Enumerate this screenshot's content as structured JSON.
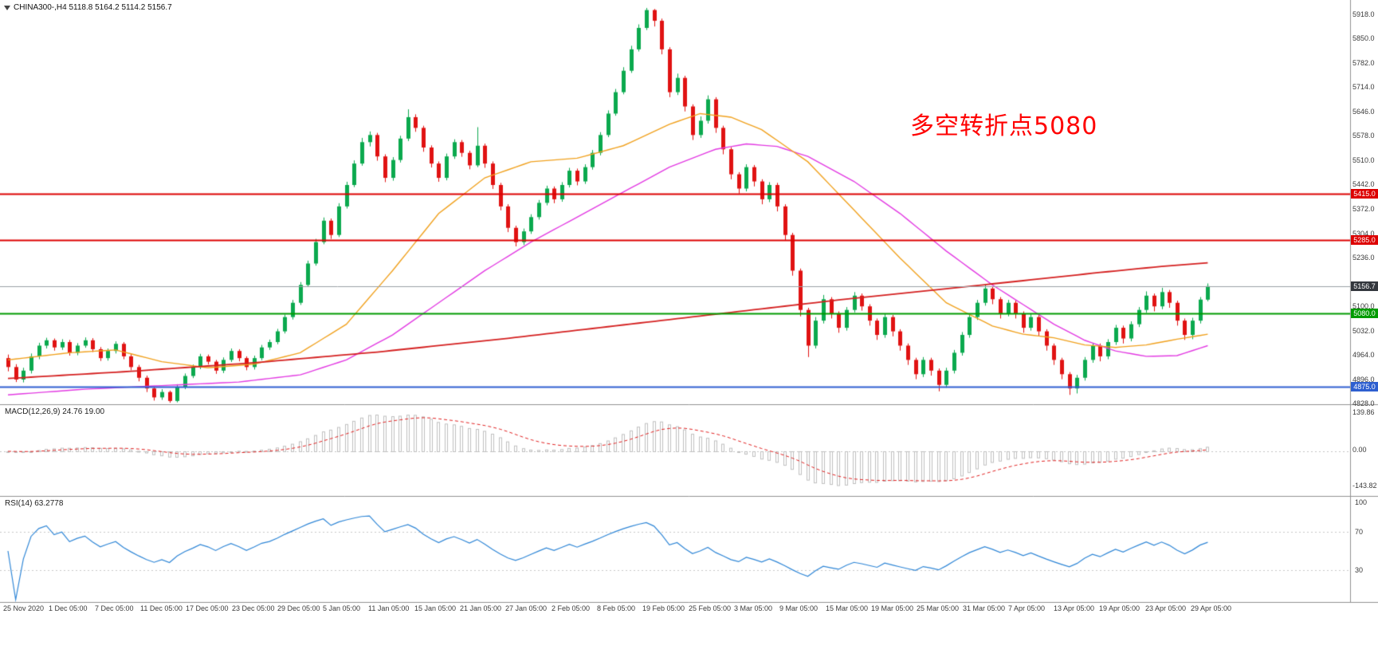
{
  "header": {
    "symbol_info": "CHINA300-,H4 5118.8 5164.2 5114.2 5156.7"
  },
  "annotation": {
    "text": "多空转折点5080",
    "color": "#ff0000"
  },
  "colors": {
    "background": "#ffffff",
    "candle_up": "#0ba94e",
    "candle_down": "#e01212",
    "ma_fast": "#f0a11e",
    "ma_medium": "#e23ae2",
    "ma_slow": "#d42020",
    "macd_histogram": "#bfbfbf",
    "macd_signal": "#e02020",
    "rsi_line": "#2f86d6",
    "axis_text": "#3a3a3a",
    "divider": "#909090"
  },
  "chart_data": {
    "type": "candlestick",
    "symbol": "CHINA300-",
    "timeframe": "H4",
    "title": "CHINA300-,H4",
    "current_bar": {
      "open": 5118.8,
      "high": 5164.2,
      "low": 5114.2,
      "close": 5156.7
    },
    "ylim": [
      4828,
      5918
    ],
    "y_axis_labels": [
      "5918.0",
      "5850.0",
      "5782.0",
      "5714.0",
      "5646.0",
      "5578.0",
      "5510.0",
      "5442.0",
      "5372.0",
      "5304.0",
      "5236.0",
      "5100.0",
      "5032.0",
      "4964.0",
      "4896.0",
      "4828.0"
    ],
    "x_axis_labels": [
      "25 Nov 2020",
      "1 Dec 05:00",
      "7 Dec 05:00",
      "11 Dec 05:00",
      "17 Dec 05:00",
      "23 Dec 05:00",
      "29 Dec 05:00",
      "5 Jan 05:00",
      "11 Jan 05:00",
      "15 Jan 05:00",
      "21 Jan 05:00",
      "27 Jan 05:00",
      "2 Feb 05:00",
      "8 Feb 05:00",
      "19 Feb 05:00",
      "25 Feb 05:00",
      "3 Mar 05:00",
      "9 Mar 05:00",
      "15 Mar 05:00",
      "19 Mar 05:00",
      "25 Mar 05:00",
      "31 Mar 05:00",
      "7 Apr 05:00",
      "13 Apr 05:00",
      "19 Apr 05:00",
      "23 Apr 05:00",
      "29 Apr 05:00"
    ],
    "candles": [
      [
        4955,
        4965,
        4918,
        4930
      ],
      [
        4930,
        4938,
        4888,
        4895
      ],
      [
        4895,
        4928,
        4887,
        4920
      ],
      [
        4920,
        4968,
        4912,
        4960
      ],
      [
        4960,
        4998,
        4952,
        4990
      ],
      [
        4990,
        5012,
        4982,
        5005
      ],
      [
        5005,
        5010,
        4976,
        4985
      ],
      [
        4985,
        5008,
        4978,
        5000
      ],
      [
        5000,
        5006,
        4962,
        4970
      ],
      [
        4970,
        4997,
        4963,
        4990
      ],
      [
        4990,
        5013,
        4984,
        5005
      ],
      [
        5005,
        5011,
        4972,
        4980
      ],
      [
        4980,
        4986,
        4947,
        4955
      ],
      [
        4955,
        4982,
        4948,
        4975
      ],
      [
        4975,
        5002,
        4968,
        4995
      ],
      [
        4995,
        5000,
        4952,
        4960
      ],
      [
        4960,
        4966,
        4921,
        4930
      ],
      [
        4930,
        4936,
        4890,
        4900
      ],
      [
        4900,
        4906,
        4860,
        4870
      ],
      [
        4870,
        4876,
        4836,
        4845
      ],
      [
        4845,
        4868,
        4838,
        4860
      ],
      [
        4860,
        4864,
        4830,
        4835
      ],
      [
        4835,
        4882,
        4831,
        4875
      ],
      [
        4875,
        4912,
        4868,
        4905
      ],
      [
        4905,
        4937,
        4899,
        4930
      ],
      [
        4930,
        4967,
        4924,
        4960
      ],
      [
        4960,
        4965,
        4937,
        4945
      ],
      [
        4945,
        4950,
        4911,
        4920
      ],
      [
        4920,
        4957,
        4913,
        4950
      ],
      [
        4950,
        4982,
        4944,
        4975
      ],
      [
        4975,
        4980,
        4946,
        4955
      ],
      [
        4955,
        4960,
        4921,
        4930
      ],
      [
        4930,
        4962,
        4923,
        4955
      ],
      [
        4955,
        4992,
        4949,
        4985
      ],
      [
        4985,
        5007,
        4978,
        5000
      ],
      [
        5000,
        5037,
        4994,
        5030
      ],
      [
        5030,
        5077,
        5024,
        5070
      ],
      [
        5070,
        5118,
        5063,
        5110
      ],
      [
        5110,
        5168,
        5104,
        5160
      ],
      [
        5160,
        5228,
        5154,
        5220
      ],
      [
        5220,
        5289,
        5214,
        5280
      ],
      [
        5280,
        5349,
        5274,
        5340
      ],
      [
        5340,
        5346,
        5289,
        5300
      ],
      [
        5300,
        5389,
        5294,
        5380
      ],
      [
        5380,
        5449,
        5374,
        5440
      ],
      [
        5440,
        5509,
        5434,
        5500
      ],
      [
        5500,
        5572,
        5494,
        5560
      ],
      [
        5560,
        5590,
        5548,
        5580
      ],
      [
        5580,
        5586,
        5508,
        5520
      ],
      [
        5520,
        5526,
        5448,
        5460
      ],
      [
        5460,
        5518,
        5452,
        5510
      ],
      [
        5510,
        5578,
        5503,
        5570
      ],
      [
        5570,
        5652,
        5563,
        5630
      ],
      [
        5630,
        5638,
        5589,
        5600
      ],
      [
        5600,
        5606,
        5533,
        5545
      ],
      [
        5545,
        5551,
        5489,
        5500
      ],
      [
        5500,
        5506,
        5449,
        5460
      ],
      [
        5460,
        5528,
        5453,
        5520
      ],
      [
        5520,
        5568,
        5513,
        5560
      ],
      [
        5560,
        5566,
        5519,
        5530
      ],
      [
        5530,
        5536,
        5484,
        5495
      ],
      [
        5495,
        5602,
        5490,
        5550
      ],
      [
        5550,
        5556,
        5488,
        5500
      ],
      [
        5500,
        5506,
        5429,
        5440
      ],
      [
        5440,
        5446,
        5369,
        5380
      ],
      [
        5380,
        5386,
        5308,
        5320
      ],
      [
        5320,
        5326,
        5268,
        5280
      ],
      [
        5280,
        5318,
        5272,
        5310
      ],
      [
        5310,
        5358,
        5303,
        5350
      ],
      [
        5350,
        5398,
        5343,
        5390
      ],
      [
        5390,
        5438,
        5383,
        5430
      ],
      [
        5430,
        5436,
        5389,
        5400
      ],
      [
        5400,
        5448,
        5393,
        5440
      ],
      [
        5440,
        5488,
        5433,
        5480
      ],
      [
        5480,
        5486,
        5439,
        5450
      ],
      [
        5450,
        5498,
        5443,
        5490
      ],
      [
        5490,
        5538,
        5483,
        5530
      ],
      [
        5530,
        5588,
        5523,
        5580
      ],
      [
        5580,
        5649,
        5574,
        5640
      ],
      [
        5640,
        5709,
        5634,
        5700
      ],
      [
        5700,
        5770,
        5694,
        5760
      ],
      [
        5760,
        5830,
        5754,
        5820
      ],
      [
        5820,
        5890,
        5814,
        5880
      ],
      [
        5880,
        5936,
        5874,
        5930
      ],
      [
        5930,
        5933,
        5884,
        5900
      ],
      [
        5900,
        5906,
        5806,
        5820
      ],
      [
        5820,
        5826,
        5686,
        5700
      ],
      [
        5700,
        5752,
        5692,
        5740
      ],
      [
        5740,
        5746,
        5646,
        5660
      ],
      [
        5660,
        5666,
        5566,
        5580
      ],
      [
        5580,
        5632,
        5572,
        5620
      ],
      [
        5620,
        5691,
        5612,
        5680
      ],
      [
        5680,
        5686,
        5586,
        5600
      ],
      [
        5600,
        5606,
        5526,
        5540
      ],
      [
        5540,
        5546,
        5456,
        5470
      ],
      [
        5470,
        5476,
        5416,
        5430
      ],
      [
        5430,
        5498,
        5422,
        5490
      ],
      [
        5490,
        5496,
        5436,
        5450
      ],
      [
        5450,
        5456,
        5386,
        5400
      ],
      [
        5400,
        5448,
        5392,
        5440
      ],
      [
        5440,
        5446,
        5366,
        5380
      ],
      [
        5380,
        5386,
        5286,
        5300
      ],
      [
        5300,
        5306,
        5186,
        5200
      ],
      [
        5200,
        5206,
        5072,
        5090
      ],
      [
        5090,
        5096,
        4958,
        4990
      ],
      [
        4990,
        5070,
        4982,
        5060
      ],
      [
        5060,
        5132,
        5052,
        5120
      ],
      [
        5120,
        5126,
        5066,
        5080
      ],
      [
        5080,
        5086,
        5026,
        5040
      ],
      [
        5040,
        5098,
        5032,
        5090
      ],
      [
        5090,
        5140,
        5083,
        5130
      ],
      [
        5130,
        5136,
        5088,
        5100
      ],
      [
        5100,
        5106,
        5046,
        5060
      ],
      [
        5060,
        5066,
        5006,
        5020
      ],
      [
        5020,
        5078,
        5012,
        5070
      ],
      [
        5070,
        5076,
        5016,
        5030
      ],
      [
        5030,
        5036,
        4976,
        4990
      ],
      [
        4990,
        4996,
        4936,
        4950
      ],
      [
        4950,
        4956,
        4896,
        4910
      ],
      [
        4910,
        4958,
        4902,
        4950
      ],
      [
        4950,
        4956,
        4906,
        4920
      ],
      [
        4920,
        4926,
        4862,
        4880
      ],
      [
        4880,
        4928,
        4872,
        4920
      ],
      [
        4920,
        4978,
        4912,
        4970
      ],
      [
        4970,
        5028,
        4962,
        5020
      ],
      [
        5020,
        5078,
        5012,
        5070
      ],
      [
        5070,
        5118,
        5062,
        5110
      ],
      [
        5110,
        5162,
        5102,
        5150
      ],
      [
        5150,
        5156,
        5106,
        5120
      ],
      [
        5120,
        5126,
        5066,
        5080
      ],
      [
        5080,
        5118,
        5072,
        5110
      ],
      [
        5110,
        5116,
        5066,
        5080
      ],
      [
        5080,
        5086,
        5026,
        5040
      ],
      [
        5040,
        5078,
        5032,
        5070
      ],
      [
        5070,
        5076,
        5016,
        5030
      ],
      [
        5030,
        5036,
        4976,
        4990
      ],
      [
        4990,
        4996,
        4936,
        4950
      ],
      [
        4950,
        4956,
        4896,
        4910
      ],
      [
        4910,
        4916,
        4852,
        4870
      ],
      [
        4870,
        4908,
        4856,
        4900
      ],
      [
        4900,
        4958,
        4892,
        4950
      ],
      [
        4950,
        4998,
        4942,
        4990
      ],
      [
        4990,
        4996,
        4946,
        4960
      ],
      [
        4960,
        5008,
        4952,
        5000
      ],
      [
        5000,
        5048,
        4992,
        5040
      ],
      [
        5040,
        5046,
        4996,
        5010
      ],
      [
        5010,
        5058,
        5002,
        5050
      ],
      [
        5050,
        5098,
        5042,
        5090
      ],
      [
        5090,
        5142,
        5082,
        5130
      ],
      [
        5130,
        5136,
        5086,
        5100
      ],
      [
        5100,
        5152,
        5092,
        5140
      ],
      [
        5140,
        5146,
        5096,
        5110
      ],
      [
        5110,
        5116,
        5046,
        5060
      ],
      [
        5060,
        5066,
        5006,
        5020
      ],
      [
        5020,
        5068,
        5008,
        5060
      ],
      [
        5060,
        5126,
        5052,
        5119
      ],
      [
        5118.8,
        5164.2,
        5114.2,
        5156.7
      ]
    ],
    "moving_averages": {
      "fast": {
        "color": "#f0a11e",
        "points": [
          [
            0,
            4950
          ],
          [
            8,
            4970
          ],
          [
            14,
            4978
          ],
          [
            20,
            4945
          ],
          [
            26,
            4928
          ],
          [
            32,
            4938
          ],
          [
            38,
            4970
          ],
          [
            44,
            5050
          ],
          [
            50,
            5200
          ],
          [
            56,
            5360
          ],
          [
            62,
            5460
          ],
          [
            68,
            5505
          ],
          [
            74,
            5515
          ],
          [
            80,
            5550
          ],
          [
            86,
            5610
          ],
          [
            90,
            5640
          ],
          [
            94,
            5630
          ],
          [
            98,
            5595
          ],
          [
            104,
            5505
          ],
          [
            110,
            5370
          ],
          [
            116,
            5235
          ],
          [
            122,
            5110
          ],
          [
            128,
            5045
          ],
          [
            132,
            5022
          ],
          [
            136,
            5012
          ],
          [
            140,
            4992
          ],
          [
            144,
            4985
          ],
          [
            148,
            4992
          ],
          [
            152,
            5008
          ],
          [
            156,
            5022
          ]
        ]
      },
      "medium": {
        "color": "#e23ae2",
        "points": [
          [
            0,
            4852
          ],
          [
            10,
            4868
          ],
          [
            20,
            4878
          ],
          [
            30,
            4888
          ],
          [
            38,
            4908
          ],
          [
            44,
            4950
          ],
          [
            50,
            5020
          ],
          [
            56,
            5110
          ],
          [
            62,
            5200
          ],
          [
            68,
            5280
          ],
          [
            74,
            5350
          ],
          [
            80,
            5420
          ],
          [
            86,
            5490
          ],
          [
            92,
            5540
          ],
          [
            96,
            5555
          ],
          [
            100,
            5548
          ],
          [
            104,
            5520
          ],
          [
            110,
            5450
          ],
          [
            116,
            5360
          ],
          [
            122,
            5255
          ],
          [
            128,
            5160
          ],
          [
            132,
            5105
          ],
          [
            136,
            5050
          ],
          [
            140,
            5005
          ],
          [
            144,
            4975
          ],
          [
            148,
            4960
          ],
          [
            152,
            4962
          ],
          [
            156,
            4990
          ]
        ]
      },
      "slow": {
        "color": "#d42020",
        "points": [
          [
            0,
            4898
          ],
          [
            16,
            4918
          ],
          [
            32,
            4942
          ],
          [
            48,
            4972
          ],
          [
            64,
            5008
          ],
          [
            80,
            5048
          ],
          [
            96,
            5088
          ],
          [
            108,
            5118
          ],
          [
            120,
            5145
          ],
          [
            132,
            5172
          ],
          [
            142,
            5195
          ],
          [
            150,
            5212
          ],
          [
            156,
            5222
          ]
        ]
      }
    },
    "horizontal_levels": [
      {
        "price": 5415.0,
        "label": "5415.0",
        "line_color": "#dd0000",
        "badge_color": "#dd0000",
        "width": 2,
        "role": "resistance"
      },
      {
        "price": 5285.0,
        "label": "5285.0",
        "line_color": "#dd0000",
        "badge_color": "#dd0000",
        "width": 2,
        "role": "resistance"
      },
      {
        "price": 5156.7,
        "label": "5156.7",
        "line_color": "#9aa0a6",
        "badge_color": "#33373d",
        "width": 1,
        "role": "current-price"
      },
      {
        "price": 5080.0,
        "label": "5080.0",
        "line_color": "#009b00",
        "badge_color": "#009b00",
        "width": 2,
        "role": "pivot"
      },
      {
        "price": 4875.0,
        "label": "4875.0",
        "line_color": "#2e5fd0",
        "badge_color": "#2e5fd0",
        "width": 2,
        "role": "support"
      }
    ],
    "indicators": {
      "macd": {
        "label": "MACD(12,26,9) 24.76 19.00",
        "params": [
          12,
          26,
          9
        ],
        "main": 24.76,
        "signal": 19.0,
        "axis_labels": [
          "139.86",
          "0.00",
          "-143.82"
        ]
      },
      "rsi": {
        "label": "RSI(14) 63.2778",
        "period": 14,
        "value": 63.2778,
        "axis_labels": [
          "100",
          "70",
          "30"
        ],
        "levels": [
          70,
          30
        ]
      }
    }
  }
}
